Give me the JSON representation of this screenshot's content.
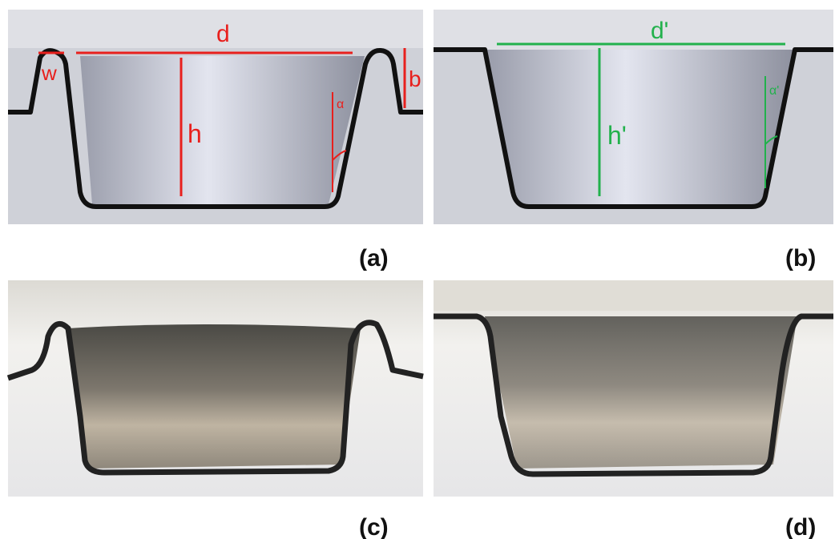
{
  "panels": [
    {
      "label": "(a)",
      "annotations": [
        "d",
        "w",
        "b",
        "h",
        "α"
      ]
    },
    {
      "label": "(b)",
      "annotations": [
        "d'",
        "h'",
        "α'"
      ]
    },
    {
      "label": "(c)"
    },
    {
      "label": "(d)"
    }
  ]
}
